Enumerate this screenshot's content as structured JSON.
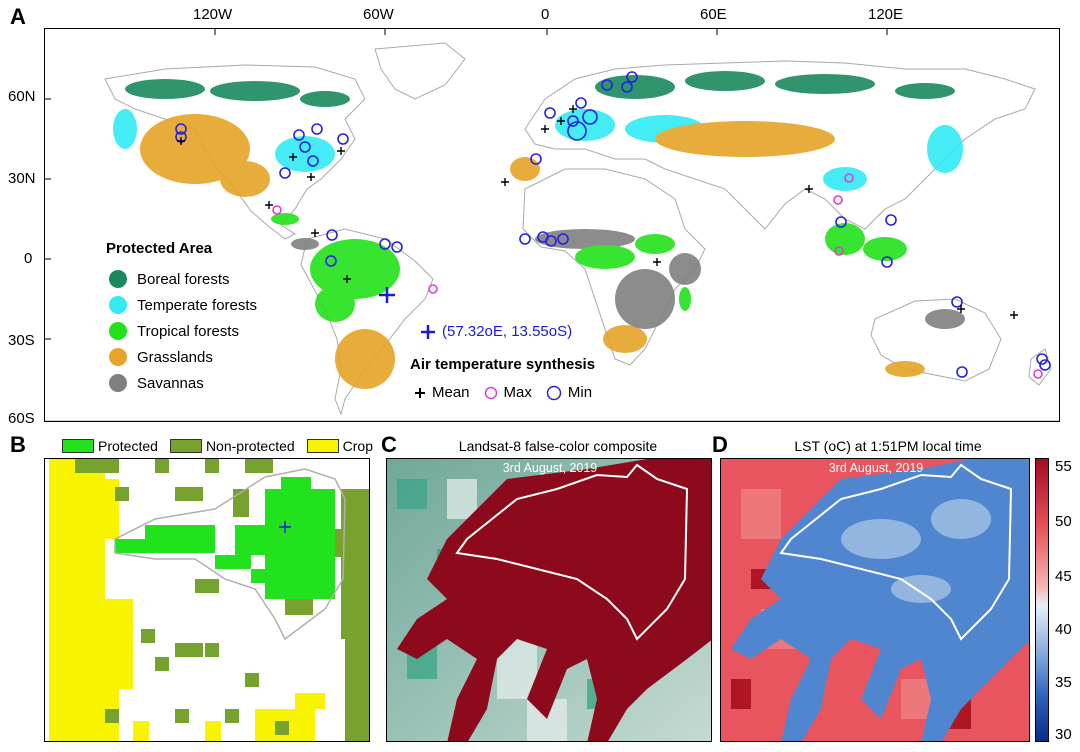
{
  "panels": {
    "a": {
      "label": "A"
    },
    "b": {
      "label": "B"
    },
    "c": {
      "label": "C",
      "title": "Landsat-8 false-color composite",
      "date": "3rd August, 2019"
    },
    "d": {
      "label": "D",
      "title": "LST (oC) at 1:51PM local time",
      "date": "3rd August, 2019"
    }
  },
  "map": {
    "lon_ticks": [
      "120W",
      "60W",
      "0",
      "60E",
      "120E"
    ],
    "lat_ticks": [
      "60N",
      "30N",
      "0",
      "30S",
      "60S"
    ],
    "site_marker": {
      "label": "(57.32oE, 13.55oS)",
      "color": "#1a1adf"
    }
  },
  "legend_pa": {
    "title": "Protected Area",
    "items": [
      {
        "label": "Boreal forests",
        "color": "#1a8a5e"
      },
      {
        "label": "Temperate forests",
        "color": "#33eaf5"
      },
      {
        "label": "Tropical forests",
        "color": "#22e21a"
      },
      {
        "label": "Grasslands",
        "color": "#e6a428"
      },
      {
        "label": "Savannas",
        "color": "#808080"
      }
    ]
  },
  "legend_air": {
    "title": "Air temperature synthesis",
    "items": [
      {
        "label": "Mean",
        "symbol": "plus",
        "color": "#000000"
      },
      {
        "label": "Max",
        "symbol": "circle",
        "color": "#e03ccf"
      },
      {
        "label": "Min",
        "symbol": "circle",
        "color": "#2323e0"
      }
    ]
  },
  "legend_b": {
    "items": [
      {
        "label": "Protected",
        "color": "#21e21c"
      },
      {
        "label": "Non-protected",
        "color": "#77a22e"
      },
      {
        "label": "Crop",
        "color": "#f8f400"
      }
    ]
  },
  "colorbar": {
    "ticks": [
      "55",
      "50",
      "45",
      "40",
      "35",
      "30"
    ],
    "min": 30,
    "max": 55
  }
}
